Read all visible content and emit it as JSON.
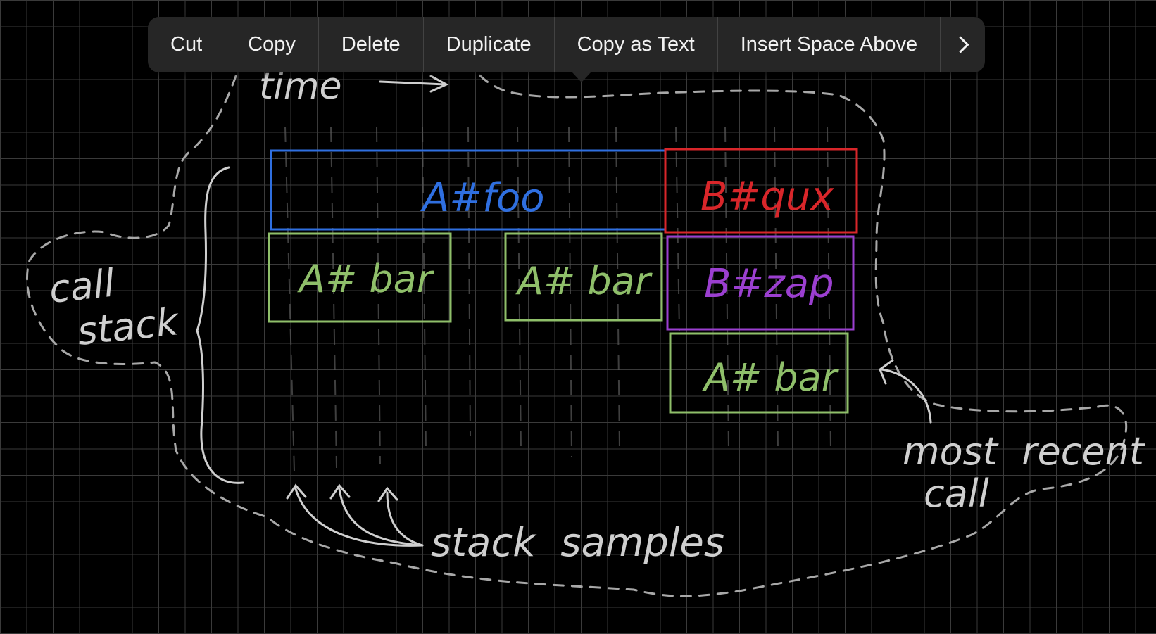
{
  "context_menu": {
    "items": [
      {
        "label": "Cut",
        "name": "cut-button"
      },
      {
        "label": "Copy",
        "name": "copy-button"
      },
      {
        "label": "Delete",
        "name": "delete-button"
      },
      {
        "label": "Duplicate",
        "name": "duplicate-button"
      },
      {
        "label": "Copy as Text",
        "name": "copy-as-text-button"
      },
      {
        "label": "Insert Space Above",
        "name": "insert-space-above-button"
      }
    ],
    "more_icon": "chevron-right-icon"
  },
  "sketch": {
    "time_label": "time",
    "call_stack_line1": "call",
    "call_stack_line2": "stack",
    "frames": {
      "foo": "A#foo",
      "qux": "B#qux",
      "bar_1": "A# bar",
      "bar_2": "A# bar",
      "zap": "B#zap",
      "bar_3": "A# bar"
    },
    "stack_samples_label": "stack  samples",
    "most_recent_line1": "most  recent",
    "most_recent_line2": "call",
    "colors": {
      "grid": "#3a3a3a",
      "chalk": "#cfcfcf",
      "blue": "#2f6fe0",
      "red": "#d9262a",
      "green": "#8fbf6a",
      "purple": "#9b3fd0",
      "sample_lines": "#5a5a5a"
    }
  }
}
